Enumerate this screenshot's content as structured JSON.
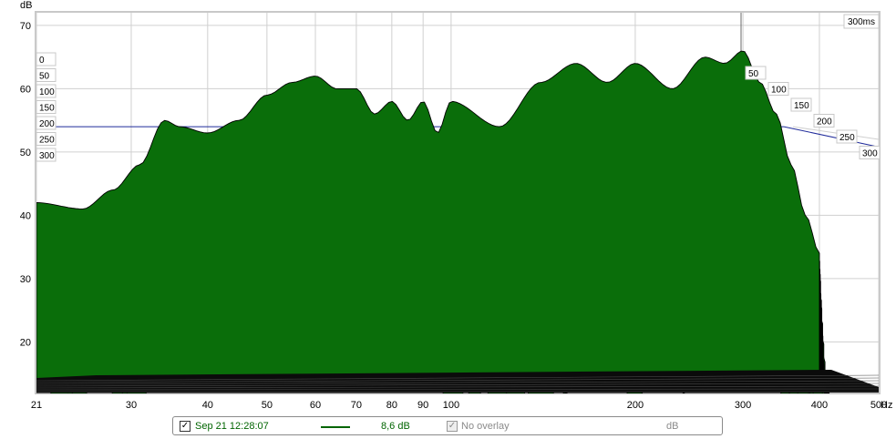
{
  "chart_data": {
    "type": "area",
    "subtype": "waterfall",
    "ylabel": "dB",
    "xlabel_unit": "Hz",
    "x_scale": "log",
    "xlim": [
      21,
      500
    ],
    "ylim": [
      12,
      72
    ],
    "x_ticks": [
      21,
      30,
      40,
      50,
      60,
      70,
      80,
      90,
      100,
      200,
      300,
      400,
      500
    ],
    "y_ticks": [
      20,
      30,
      40,
      50,
      60,
      70
    ],
    "time_label": "300ms",
    "time_ticks_left": [
      "0",
      "50",
      "100",
      "150",
      "200",
      "250",
      "300"
    ],
    "time_ticks_right": [
      "50",
      "100",
      "150",
      "200",
      "250",
      "300"
    ],
    "fill_color": "#0a6e0a",
    "line_color": "#000000",
    "grid": true,
    "front_slice": {
      "time_ms": 0,
      "x": [
        21,
        25,
        28,
        31,
        34,
        36,
        40,
        45,
        50,
        55,
        60,
        65,
        70,
        75,
        80,
        85,
        90,
        95,
        100,
        120,
        140,
        160,
        180,
        200,
        230,
        260,
        280,
        300,
        320,
        340,
        360,
        380,
        400
      ],
      "y": [
        42,
        41,
        44,
        48,
        55,
        54,
        53,
        55,
        59,
        61,
        62,
        60,
        60,
        56,
        58,
        55,
        58,
        53,
        58,
        54,
        61,
        64,
        61,
        64,
        60,
        65,
        64,
        66,
        61,
        56,
        48,
        40,
        34
      ]
    }
  },
  "legend": {
    "measurement_checked": "✓",
    "measurement_label": "Sep 21 12:28:07",
    "smoothing": "8,6 dB",
    "overlay_checked": "✓",
    "overlay_label": "No overlay",
    "unit": "dB"
  }
}
